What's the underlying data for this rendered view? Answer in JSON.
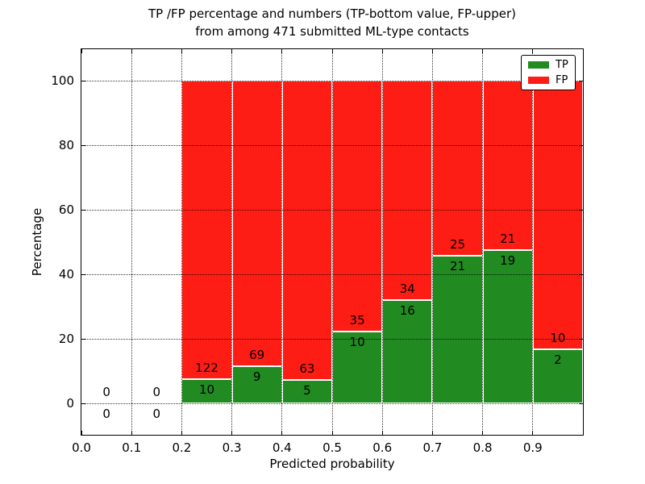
{
  "figure": {
    "title_line1": "TP /FP percentage and numbers (TP-bottom value, FP-upper)",
    "title_line2": "from among 471 submitted ML-type contacts"
  },
  "chart_data": {
    "type": "bar",
    "stacked": true,
    "normalized_to_percent": true,
    "title": "TP /FP percentage and numbers (TP-bottom value, FP-upper) from among 471 submitted ML-type contacts",
    "xlabel": "Predicted probability",
    "ylabel": "Percentage",
    "total_contacts": 471,
    "bin_width": 0.1,
    "bin_starts": [
      0.0,
      0.1,
      0.2,
      0.3,
      0.4,
      0.5,
      0.6,
      0.7,
      0.8,
      0.9
    ],
    "series": [
      {
        "name": "TP",
        "color": "#218a21",
        "counts": [
          0,
          0,
          10,
          9,
          5,
          10,
          16,
          21,
          19,
          2
        ]
      },
      {
        "name": "FP",
        "color": "#fd1d15",
        "counts": [
          0,
          0,
          122,
          69,
          63,
          35,
          34,
          25,
          21,
          10
        ]
      }
    ],
    "tp_percent_by_bin": [
      null,
      null,
      7.6,
      11.5,
      7.4,
      22.2,
      32.0,
      45.7,
      47.5,
      16.7
    ],
    "xlim": [
      0.0,
      1.0
    ],
    "ylim": [
      -9.75,
      109.75
    ],
    "xtick_values": [
      0.0,
      0.1,
      0.2,
      0.3,
      0.4,
      0.5,
      0.6,
      0.7,
      0.8,
      0.9
    ],
    "xtick_labels": [
      "0.0",
      "0.1",
      "0.2",
      "0.3",
      "0.4",
      "0.5",
      "0.6",
      "0.7",
      "0.8",
      "0.9"
    ],
    "ytick_values": [
      0,
      20,
      40,
      60,
      80,
      100
    ],
    "ytick_labels": [
      "0",
      "20",
      "40",
      "60",
      "80",
      "100"
    ],
    "grid": true,
    "legend_position": "upper right"
  },
  "legend": {
    "items": [
      {
        "label": "TP",
        "color": "#218a21"
      },
      {
        "label": "FP",
        "color": "#fd1d15"
      }
    ]
  }
}
